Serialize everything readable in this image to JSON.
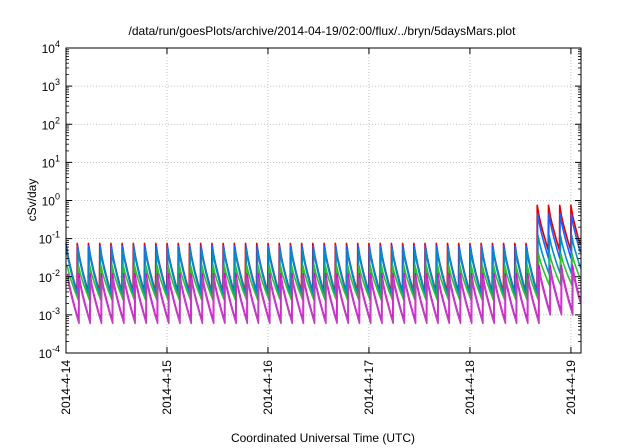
{
  "chart_data": {
    "type": "line",
    "title": "/data/run/goesPlots/archive/2014-04-19/02:00/flux/../bryn/5daysMars.plot",
    "xlabel": "Coordinated Universal Time (UTC)",
    "ylabel": "cSv/day",
    "yscale": "log",
    "ylim_exponents": [
      -4,
      4
    ],
    "ytick_exponents": [
      -4,
      -3,
      -2,
      -1,
      0,
      1,
      2,
      3,
      4
    ],
    "ytick_base": "10",
    "xlim_days": [
      0,
      5.1
    ],
    "xtick_labels": [
      "2014-4-14",
      "2014-4-15",
      "2014-4-16",
      "2014-4-17",
      "2014-4-18",
      "2014-4-19"
    ],
    "xtick_days": [
      0,
      1,
      2,
      3,
      4,
      5
    ],
    "grid": true,
    "cycles_per_day": 9,
    "step_day": 4.62,
    "series": [
      {
        "color": "#e00000",
        "peak_low": 0.075,
        "trough_low": 0.004,
        "peak_high": 0.75,
        "trough_high": 0.05
      },
      {
        "color": "#1f5fff",
        "peak_low": 0.065,
        "trough_low": 0.0035,
        "peak_high": 0.45,
        "trough_high": 0.03
      },
      {
        "color": "#0090c0",
        "peak_low": 0.05,
        "trough_low": 0.003,
        "peak_high": 0.12,
        "trough_high": 0.012
      },
      {
        "color": "#30c030",
        "peak_low": 0.02,
        "trough_low": 0.0025,
        "peak_high": 0.04,
        "trough_high": 0.006
      },
      {
        "color": "#e000e0",
        "peak_low": 0.012,
        "trough_low": 0.0007,
        "peak_high": 0.02,
        "trough_high": 0.0012
      },
      {
        "color": "#c040c0",
        "peak_low": 0.009,
        "trough_low": 0.0006,
        "peak_high": 0.015,
        "trough_high": 0.001
      }
    ]
  }
}
